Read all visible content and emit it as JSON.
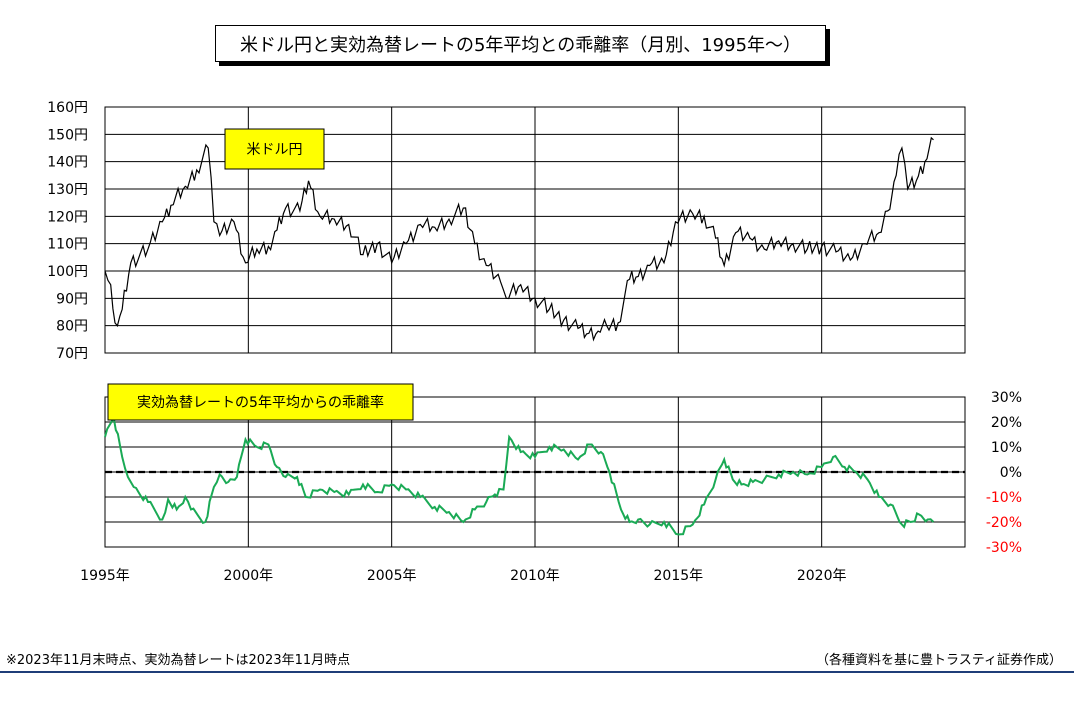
{
  "title": "米ドル円と実効為替レートの5年平均との乖離率（月別、1995年～）",
  "footnote_left": "※2023年11月末時点、実効為替レートは2023年11月時点",
  "footnote_right": "（各種資料を基に豊トラスティ証券作成）",
  "colors": {
    "price_line": "#000000",
    "deviation_line": "#1aaa55",
    "negative_tick": "#ff0000",
    "label_box": "#ffff00"
  },
  "chart_data": [
    {
      "type": "line",
      "label": "米ドル円",
      "ylim": [
        70,
        160
      ],
      "yticks": [
        "70円",
        "80円",
        "90円",
        "100円",
        "110円",
        "120円",
        "130円",
        "140円",
        "150円",
        "160円"
      ],
      "x_range": [
        1995.0,
        2025.0
      ],
      "grid": true,
      "series": [
        {
          "x": [
            1995.0,
            1995.2,
            1995.35,
            1995.6,
            1995.9,
            1996.5,
            1997.0,
            1997.3,
            1997.8,
            1998.2,
            1998.6,
            1998.8,
            1999.0,
            1999.5,
            1999.9,
            2000.3,
            2000.7,
            2001.0,
            2001.3,
            2001.8,
            2002.1,
            2002.5,
            2003.0,
            2003.5,
            2004.0,
            2004.5,
            2005.0,
            2005.5,
            2006.0,
            2006.5,
            2007.0,
            2007.5,
            2007.9,
            2008.3,
            2008.8,
            2009.0,
            2009.5,
            2010.0,
            2010.5,
            2011.0,
            2011.5,
            2011.8,
            2012.2,
            2012.5,
            2012.9,
            2013.3,
            2013.6,
            2014.0,
            2014.5,
            2014.9,
            2015.5,
            2015.9,
            2016.3,
            2016.6,
            2017.0,
            2017.5,
            2018.0,
            2018.5,
            2019.0,
            2019.5,
            2020.0,
            2020.5,
            2021.0,
            2021.5,
            2022.0,
            2022.3,
            2022.6,
            2022.8,
            2023.0,
            2023.3,
            2023.6,
            2023.9
          ],
          "values": [
            100,
            95,
            81,
            86,
            103,
            108,
            118,
            124,
            131,
            137,
            145,
            118,
            113,
            118,
            103,
            108,
            109,
            115,
            123,
            122,
            133,
            120,
            119,
            117,
            106,
            110,
            103,
            110,
            117,
            116,
            119,
            123,
            110,
            102,
            96,
            90,
            95,
            90,
            86,
            82,
            79,
            77,
            78,
            80,
            81,
            97,
            98,
            102,
            103,
            118,
            121,
            120,
            112,
            102,
            114,
            112,
            108,
            111,
            110,
            108,
            109,
            107,
            104,
            110,
            114,
            122,
            135,
            145,
            130,
            133,
            140,
            148
          ]
        }
      ]
    },
    {
      "type": "line",
      "label": "実効為替レートの5年平均からの乖離率",
      "ylim": [
        -30,
        30
      ],
      "yticks": [
        "30%",
        "20%",
        "10%",
        "0%",
        "-10%",
        "-20%",
        "-30%"
      ],
      "x_range": [
        1995.0,
        2025.0
      ],
      "grid": true,
      "reference_line": 0,
      "series": [
        {
          "x": [
            1995.0,
            1995.3,
            1995.6,
            1995.8,
            1996.0,
            1996.5,
            1997.0,
            1997.2,
            1997.5,
            1997.8,
            1998.0,
            1998.5,
            1998.8,
            1999.0,
            1999.3,
            1999.6,
            1999.9,
            2000.3,
            2000.7,
            2001.0,
            2001.3,
            2001.7,
            2002.0,
            2002.5,
            2003.0,
            2003.5,
            2004.0,
            2004.5,
            2005.0,
            2005.5,
            2006.0,
            2006.5,
            2007.0,
            2007.5,
            2007.9,
            2008.3,
            2008.6,
            2008.9,
            2009.1,
            2009.5,
            2010.0,
            2010.5,
            2011.0,
            2011.5,
            2011.9,
            2012.3,
            2012.6,
            2013.0,
            2013.3,
            2013.6,
            2014.0,
            2014.5,
            2015.0,
            2015.5,
            2015.9,
            2016.3,
            2016.6,
            2016.9,
            2017.2,
            2017.6,
            2018.0,
            2018.5,
            2019.0,
            2019.5,
            2020.0,
            2020.4,
            2020.8,
            2021.2,
            2021.6,
            2022.0,
            2022.4,
            2022.8,
            2023.1,
            2023.4,
            2023.7,
            2023.9
          ],
          "values": [
            14,
            22,
            6,
            -2,
            -6,
            -12,
            -19,
            -11,
            -15,
            -10,
            -15,
            -20,
            -6,
            -1,
            -4,
            -2,
            13,
            10,
            11,
            2,
            -2,
            -2,
            -10,
            -7,
            -8,
            -9,
            -5,
            -8,
            -5,
            -7,
            -10,
            -14,
            -16,
            -20,
            -15,
            -12,
            -9,
            -7,
            14,
            8,
            6,
            10,
            9,
            5,
            11,
            8,
            0,
            -15,
            -20,
            -19,
            -21,
            -20,
            -25,
            -21,
            -13,
            -3,
            5,
            -3,
            -5,
            -4,
            -3,
            -1,
            0,
            -1,
            2,
            6,
            2,
            0,
            -3,
            -10,
            -13,
            -21,
            -20,
            -17,
            -19,
            -20
          ]
        }
      ]
    }
  ],
  "xticks": [
    "1995年",
    "2000年",
    "2005年",
    "2010年",
    "2015年",
    "2020年"
  ]
}
